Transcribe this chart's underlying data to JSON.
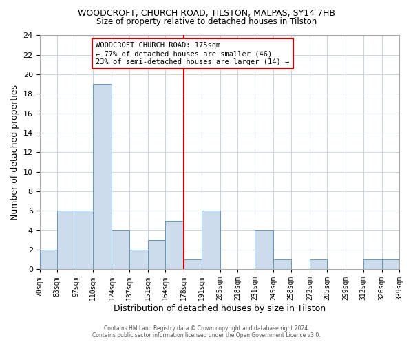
{
  "title": "WOODCROFT, CHURCH ROAD, TILSTON, MALPAS, SY14 7HB",
  "subtitle": "Size of property relative to detached houses in Tilston",
  "xlabel": "Distribution of detached houses by size in Tilston",
  "ylabel": "Number of detached properties",
  "bar_color": "#ccdcec",
  "bar_edge_color": "#6699bb",
  "grid_color": "#c8d4e0",
  "reference_line_x": 178,
  "reference_line_color": "#cc0000",
  "annotation_title": "WOODCROFT CHURCH ROAD: 175sqm",
  "annotation_line1": "← 77% of detached houses are smaller (46)",
  "annotation_line2": "23% of semi-detached houses are larger (14) →",
  "annotation_box_color": "#ffffff",
  "annotation_box_edge": "#cc0000",
  "bins": [
    70,
    83,
    97,
    110,
    124,
    137,
    151,
    164,
    178,
    191,
    205,
    218,
    231,
    245,
    258,
    272,
    285,
    299,
    312,
    326,
    339
  ],
  "counts": [
    2,
    6,
    6,
    19,
    4,
    2,
    3,
    5,
    1,
    6,
    0,
    0,
    4,
    1,
    0,
    1,
    0,
    0,
    1,
    1
  ],
  "tick_labels": [
    "70sqm",
    "83sqm",
    "97sqm",
    "110sqm",
    "124sqm",
    "137sqm",
    "151sqm",
    "164sqm",
    "178sqm",
    "191sqm",
    "205sqm",
    "218sqm",
    "231sqm",
    "245sqm",
    "258sqm",
    "272sqm",
    "285sqm",
    "299sqm",
    "312sqm",
    "326sqm",
    "339sqm"
  ],
  "ylim": [
    0,
    24
  ],
  "yticks": [
    0,
    2,
    4,
    6,
    8,
    10,
    12,
    14,
    16,
    18,
    20,
    22,
    24
  ],
  "footer_line1": "Contains HM Land Registry data © Crown copyright and database right 2024.",
  "footer_line2": "Contains public sector information licensed under the Open Government Licence v3.0."
}
